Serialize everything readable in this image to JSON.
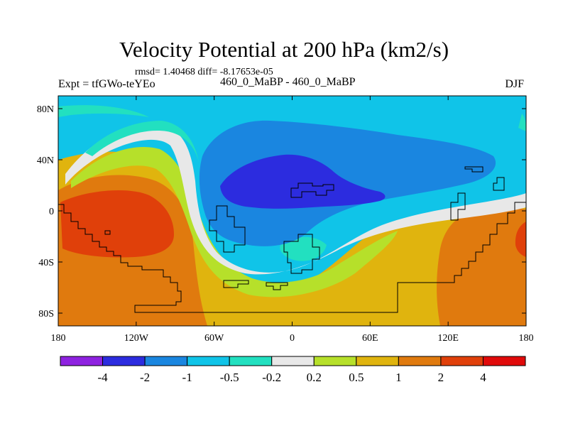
{
  "chart_data": {
    "type": "heatmap",
    "title": "Velocity Potential at 200 hPa (km2/s)",
    "stats_line": "rmsd= 1.40468 diff= -8.17653e-05",
    "left_label": "Expt = tfGWo-teYEo",
    "center_label": "460_0_MaBP - 460_0_MaBP",
    "right_label": "DJF",
    "x_ticks": [
      "180",
      "120W",
      "60W",
      "0",
      "60E",
      "120E",
      "180"
    ],
    "y_ticks": [
      "80N",
      "40N",
      "0",
      "40S",
      "80S"
    ],
    "xlim": [
      -180,
      180
    ],
    "ylim": [
      -90,
      90
    ],
    "levels": [
      "-4",
      "-2",
      "-1",
      "-0.5",
      "-0.2",
      "0.2",
      "0.5",
      "1",
      "2",
      "4"
    ],
    "colors": [
      "#8e22e0",
      "#2c2cdf",
      "#1a86e0",
      "#10c4e8",
      "#22e0c0",
      "#e8e8e8",
      "#b6e02a",
      "#e0b40e",
      "#e07a0e",
      "#e0400a",
      "#e00a0a"
    ]
  }
}
